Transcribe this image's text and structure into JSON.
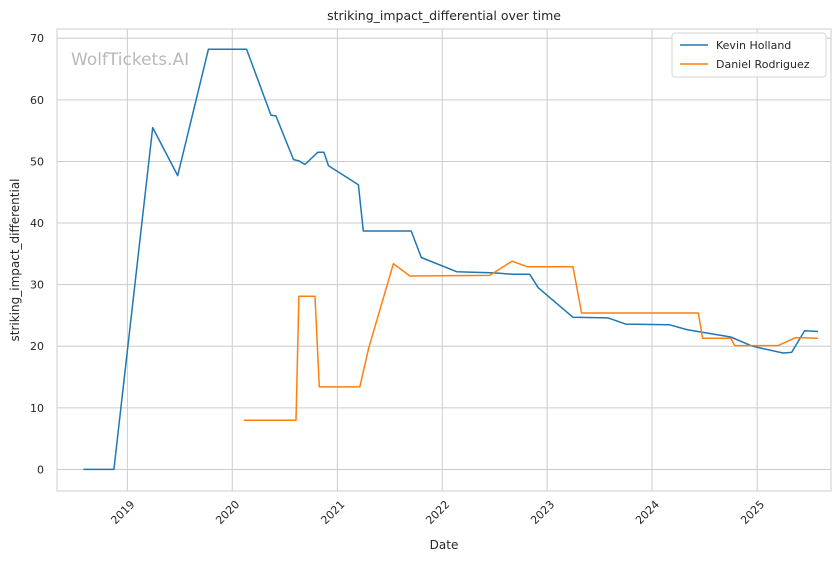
{
  "chart_data": {
    "type": "line",
    "title": "striking_impact_differential over time",
    "xlabel": "Date",
    "ylabel": "striking_impact_differential",
    "watermark": "WolfTickets.AI",
    "x_ticks": [
      "2019",
      "2020",
      "2021",
      "2022",
      "2023",
      "2024",
      "2025"
    ],
    "y_ticks": [
      0,
      10,
      20,
      30,
      40,
      50,
      60,
      70
    ],
    "xlim": [
      "2018-05-01",
      "2025-09-15"
    ],
    "ylim": [
      -3.5,
      71.5
    ],
    "grid": true,
    "legend_position": "top-right",
    "series": [
      {
        "name": "Kevin Holland",
        "color": "#1f77b4",
        "points": [
          [
            "2018-08-01",
            0
          ],
          [
            "2018-11-15",
            0
          ],
          [
            "2019-03-30",
            55.5
          ],
          [
            "2019-06-25",
            47.7
          ],
          [
            "2019-10-10",
            68.2
          ],
          [
            "2020-02-20",
            68.2
          ],
          [
            "2020-05-15",
            57.5
          ],
          [
            "2020-06-01",
            57.4
          ],
          [
            "2020-08-01",
            50.3
          ],
          [
            "2020-08-20",
            50.1
          ],
          [
            "2020-09-10",
            49.5
          ],
          [
            "2020-10-25",
            51.5
          ],
          [
            "2020-11-15",
            51.5
          ],
          [
            "2020-12-01",
            49.3
          ],
          [
            "2021-03-15",
            46.2
          ],
          [
            "2021-04-01",
            38.7
          ],
          [
            "2021-09-15",
            38.7
          ],
          [
            "2021-10-20",
            34.4
          ],
          [
            "2022-02-20",
            32.1
          ],
          [
            "2022-07-01",
            31.9
          ],
          [
            "2022-09-01",
            31.7
          ],
          [
            "2022-11-01",
            31.7
          ],
          [
            "2022-12-01",
            29.5
          ],
          [
            "2023-04-01",
            24.7
          ],
          [
            "2023-08-01",
            24.6
          ],
          [
            "2023-10-01",
            23.6
          ],
          [
            "2024-03-01",
            23.5
          ],
          [
            "2024-05-01",
            22.7
          ],
          [
            "2024-10-01",
            21.5
          ],
          [
            "2024-12-15",
            20.0
          ],
          [
            "2025-04-01",
            18.9
          ],
          [
            "2025-05-01",
            19.0
          ],
          [
            "2025-06-15",
            22.5
          ],
          [
            "2025-08-01",
            22.4
          ]
        ]
      },
      {
        "name": "Daniel Rodriguez",
        "color": "#ff7f0e",
        "points": [
          [
            "2020-02-10",
            8.0
          ],
          [
            "2020-08-10",
            8.0
          ],
          [
            "2020-08-20",
            28.1
          ],
          [
            "2020-10-15",
            28.1
          ],
          [
            "2020-10-30",
            13.4
          ],
          [
            "2021-03-20",
            13.4
          ],
          [
            "2021-04-20",
            19.7
          ],
          [
            "2021-07-15",
            33.4
          ],
          [
            "2021-09-10",
            31.4
          ],
          [
            "2022-06-15",
            31.5
          ],
          [
            "2022-09-01",
            33.8
          ],
          [
            "2022-10-25",
            32.9
          ],
          [
            "2023-04-01",
            32.9
          ],
          [
            "2023-05-01",
            25.4
          ],
          [
            "2024-06-10",
            25.4
          ],
          [
            "2024-06-25",
            21.3
          ],
          [
            "2024-10-01",
            21.3
          ],
          [
            "2024-10-15",
            20.1
          ],
          [
            "2025-03-15",
            20.1
          ],
          [
            "2025-05-15",
            21.4
          ],
          [
            "2025-08-01",
            21.3
          ]
        ]
      }
    ]
  }
}
